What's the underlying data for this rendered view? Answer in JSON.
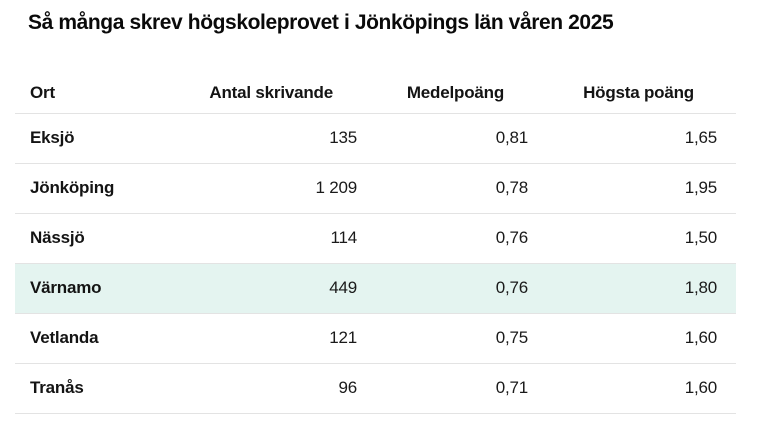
{
  "title": "Så många skrev högskoleprovet i Jönköpings län våren 2025",
  "chart_data": {
    "type": "table",
    "title": "Så många skrev högskoleprovet i Jönköpings län våren 2025",
    "columns": [
      "Ort",
      "Antal skrivande",
      "Medelpoäng",
      "Högsta poäng"
    ],
    "rows": [
      [
        "Eksjö",
        "135",
        "0,81",
        "1,65"
      ],
      [
        "Jönköping",
        "1 209",
        "0,78",
        "1,95"
      ],
      [
        "Nässjö",
        "114",
        "0,76",
        "1,50"
      ],
      [
        "Värnamo",
        "449",
        "0,76",
        "1,80"
      ],
      [
        "Vetlanda",
        "121",
        "0,75",
        "1,60"
      ],
      [
        "Tranås",
        "96",
        "0,71",
        "1,60"
      ]
    ],
    "numeric_rows": [
      {
        "ort": "Eksjö",
        "antal_skrivande": 135,
        "medelpoang": 0.81,
        "hogsta_poang": 1.65
      },
      {
        "ort": "Jönköping",
        "antal_skrivande": 1209,
        "medelpoang": 0.78,
        "hogsta_poang": 1.95
      },
      {
        "ort": "Nässjö",
        "antal_skrivande": 114,
        "medelpoang": 0.76,
        "hogsta_poang": 1.5
      },
      {
        "ort": "Värnamo",
        "antal_skrivande": 449,
        "medelpoang": 0.76,
        "hogsta_poang": 1.8
      },
      {
        "ort": "Vetlanda",
        "antal_skrivande": 121,
        "medelpoang": 0.75,
        "hogsta_poang": 1.6
      },
      {
        "ort": "Tranås",
        "antal_skrivande": 96,
        "medelpoang": 0.71,
        "hogsta_poang": 1.6
      }
    ],
    "highlighted_row": "Värnamo",
    "colors": {
      "highlight_background": "#e4f4f0",
      "divider": "#e3e3e3",
      "text": "#141414",
      "background": "#ffffff"
    },
    "layout": {
      "header_bold": true,
      "ort_column_bold": true,
      "numeric_columns_alignment": "right"
    }
  }
}
